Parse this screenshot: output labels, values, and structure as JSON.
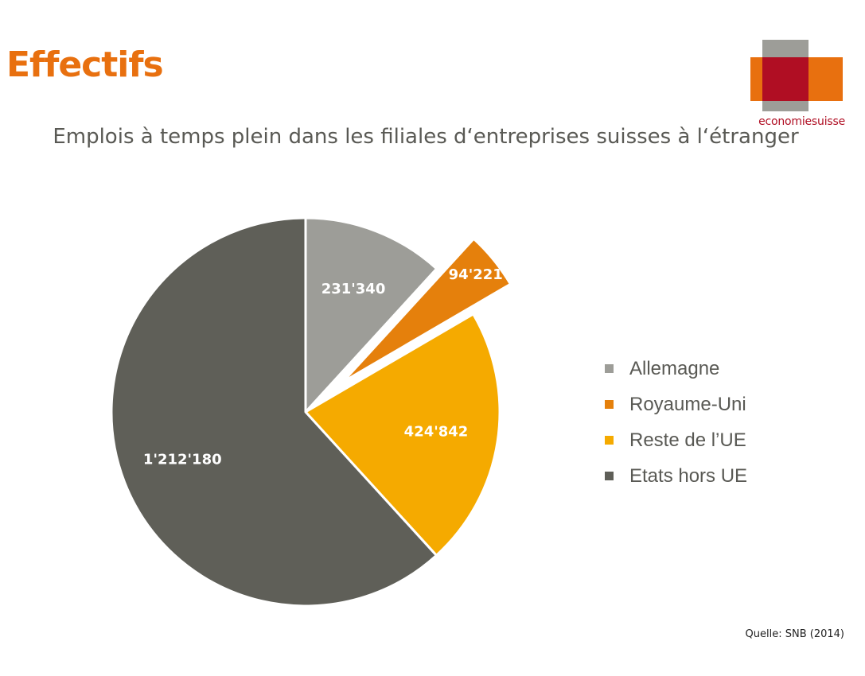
{
  "heading": "Effectifs",
  "logo": {
    "wordmark": "economiesuisse"
  },
  "source": "Quelle: SNB (2014)",
  "chart_data": {
    "type": "pie",
    "title": "Emplois à temps plein dans les filiales d‘entreprises suisses à l‘étranger",
    "categories": [
      "Allemagne",
      "Royaume-Uni",
      "Reste de l’UE",
      "Etats hors UE"
    ],
    "values": [
      231340,
      94221,
      424842,
      1212180
    ],
    "value_labels": [
      "231'340",
      "94'221",
      "424'842",
      "1'212'180"
    ],
    "colors": [
      "#9d9d98",
      "#e5800c",
      "#f5aa00",
      "#5f5f58"
    ],
    "exploded": [
      false,
      true,
      false,
      false
    ],
    "legend_position": "right"
  }
}
